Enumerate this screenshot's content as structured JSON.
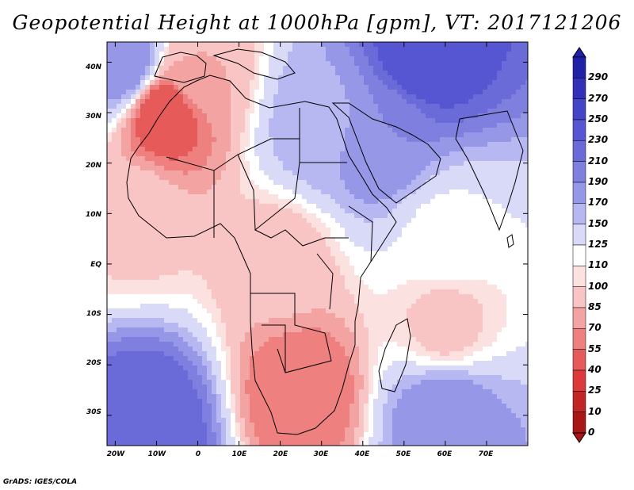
{
  "title": "Geopotential Height at 1000hPa [gpm], VT: 2017121206",
  "credit": "GrADS: IGES/COLA",
  "lat_labels": [
    "40N",
    "30N",
    "20N",
    "10N",
    "EQ",
    "10S",
    "20S",
    "30S"
  ],
  "lon_labels": [
    "20W",
    "10W",
    "0",
    "10E",
    "20E",
    "30E",
    "40E",
    "50E",
    "60E",
    "70E"
  ],
  "colorbar": {
    "levels": [
      "290",
      "270",
      "250",
      "230",
      "210",
      "190",
      "170",
      "150",
      "125",
      "110",
      "100",
      "85",
      "70",
      "55",
      "40",
      "25",
      "10",
      "0"
    ],
    "colors": [
      "#2121a8",
      "#3030b9",
      "#4444c8",
      "#5656d2",
      "#6a6ad8",
      "#7f7fe0",
      "#9797e8",
      "#b7b7f2",
      "#d9d9f8",
      "#ffffff",
      "#fce1e1",
      "#f9c4c4",
      "#f4a3a3",
      "#ee8080",
      "#e65a5a",
      "#dc3a3a",
      "#c22525",
      "#a81616"
    ]
  },
  "chart_data": {
    "type": "heatmap",
    "variable": "Geopotential Height at 1000hPa",
    "units": "gpm",
    "valid_time": "2017121206",
    "lon_range": [
      -22,
      80
    ],
    "lat_range": [
      -36,
      44
    ],
    "field_samples": [
      {
        "lon": -18,
        "lat": 40,
        "value": 190
      },
      {
        "lon": -12,
        "lat": -32,
        "value": 230
      },
      {
        "lon": 60,
        "lat": -30,
        "value": 190
      },
      {
        "lon": 55,
        "lat": 42,
        "value": 250
      },
      {
        "lon": 45,
        "lat": 25,
        "value": 190
      },
      {
        "lon": 30,
        "lat": 28,
        "value": 165
      },
      {
        "lon": 0,
        "lat": 38,
        "value": 85
      },
      {
        "lon": -8,
        "lat": 30,
        "value": 40
      },
      {
        "lon": 25,
        "lat": -25,
        "value": 55
      },
      {
        "lon": 20,
        "lat": 0,
        "value": 90
      },
      {
        "lon": -15,
        "lat": 10,
        "value": 95
      },
      {
        "lon": 60,
        "lat": -12,
        "value": 95
      },
      {
        "lon": 60,
        "lat": 5,
        "value": 120
      }
    ]
  }
}
